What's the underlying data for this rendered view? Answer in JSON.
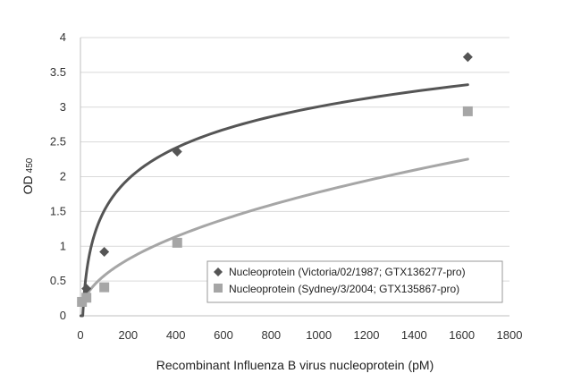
{
  "chart_data": {
    "type": "scatter",
    "xlabel": "Recombinant Influenza B virus nucleoprotein (pM)",
    "ylabel": "OD",
    "ylabel_subscript": "450",
    "xlim": [
      0,
      1800
    ],
    "ylim": [
      0,
      4
    ],
    "x_ticks": [
      "0",
      "200",
      "400",
      "600",
      "800",
      "1000",
      "1200",
      "1400",
      "1600",
      "1800"
    ],
    "y_ticks": [
      "0",
      "0.5",
      "1",
      "1.5",
      "2",
      "2.5",
      "3",
      "3.5",
      "4"
    ],
    "grid": "horizontal",
    "legend_position": "bottom-right",
    "series": [
      {
        "name": "Nucleoprotein (Victoria/02/1987; GTX136277-pro)",
        "marker": "diamond",
        "color": "#555555",
        "x": [
          6.3,
          25,
          100,
          406,
          1625
        ],
        "y": [
          0.2,
          0.39,
          0.92,
          2.36,
          3.72
        ],
        "trendline": "logarithmic"
      },
      {
        "name": "Nucleoprotein (Sydney/3/2004; GTX135867-pro)",
        "marker": "square",
        "color": "#a6a6a6",
        "x": [
          6.3,
          25,
          100,
          406,
          1625
        ],
        "y": [
          0.2,
          0.26,
          0.41,
          1.05,
          2.94
        ],
        "trendline": "power"
      }
    ]
  }
}
